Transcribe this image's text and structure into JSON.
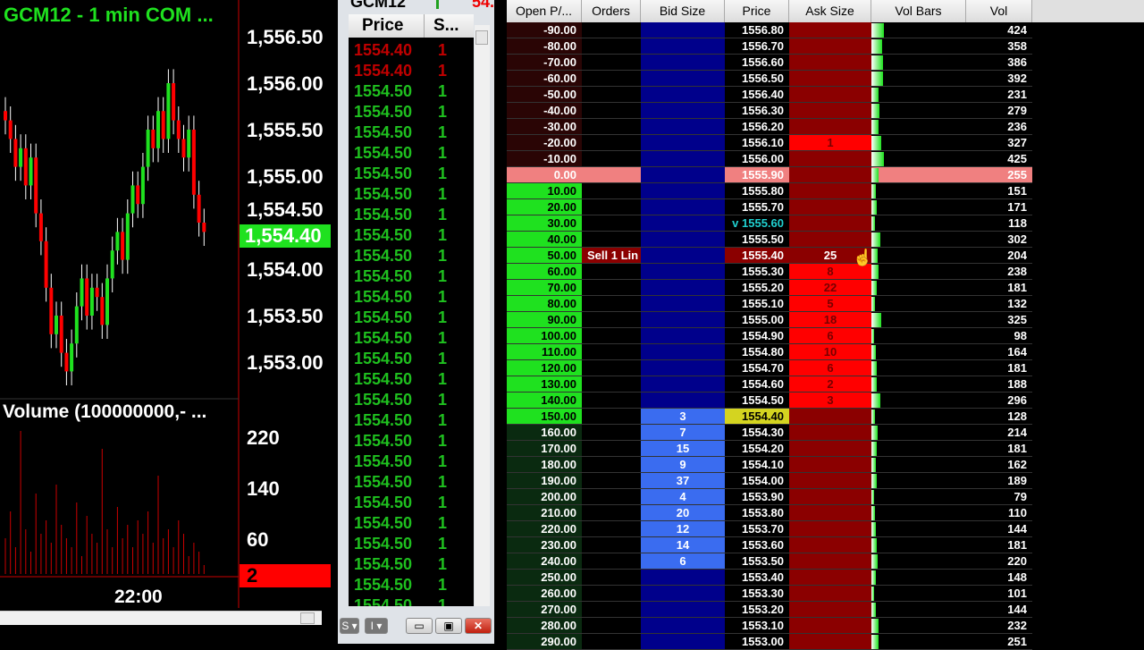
{
  "chart": {
    "title": "GCM12 - 1 min  COM ...",
    "price_labels": [
      "1,556.50",
      "1,556.00",
      "1,555.50",
      "1,555.00",
      "1,554.50",
      "1,554.00",
      "1,553.50",
      "1,553.00"
    ],
    "last_price": "1,554.40",
    "volume_title": "Volume (100000000,- ...",
    "volume_labels": [
      "220",
      "140",
      "60"
    ],
    "last_volume": "2",
    "time_label": "22:00",
    "closes": [
      1555.6,
      1555.4,
      1555.1,
      1555.3,
      1554.9,
      1555.2,
      1554.6,
      1554.3,
      1553.8,
      1553.3,
      1553.5,
      1553.1,
      1552.9,
      1553.2,
      1553.6,
      1553.9,
      1553.5,
      1553.8,
      1553.7,
      1553.4,
      1553.9,
      1554.2,
      1554.4,
      1554.1,
      1554.6,
      1554.9,
      1554.7,
      1555.1,
      1555.5,
      1555.3,
      1555.7,
      1555.4,
      1556.0,
      1555.6,
      1555.4,
      1555.2,
      1555.5,
      1554.8,
      1554.5,
      1554.4
    ]
  },
  "ts": {
    "symbol": "GCM12",
    "last": "54.",
    "headers": [
      "Price",
      "S..."
    ],
    "rows": [
      [
        "1554.40",
        "1",
        "sell"
      ],
      [
        "1554.40",
        "1",
        "sell"
      ],
      [
        "1554.50",
        "1",
        "buy"
      ],
      [
        "1554.50",
        "1",
        "buy"
      ],
      [
        "1554.50",
        "1",
        "buy"
      ],
      [
        "1554.50",
        "1",
        "buy"
      ],
      [
        "1554.50",
        "1",
        "buy"
      ],
      [
        "1554.50",
        "1",
        "buy"
      ],
      [
        "1554.50",
        "1",
        "buy"
      ],
      [
        "1554.50",
        "1",
        "buy"
      ],
      [
        "1554.50",
        "1",
        "buy"
      ],
      [
        "1554.50",
        "1",
        "buy"
      ],
      [
        "1554.50",
        "1",
        "buy"
      ],
      [
        "1554.50",
        "1",
        "buy"
      ],
      [
        "1554.50",
        "1",
        "buy"
      ],
      [
        "1554.50",
        "1",
        "buy"
      ],
      [
        "1554.50",
        "1",
        "buy"
      ],
      [
        "1554.50",
        "1",
        "buy"
      ],
      [
        "1554.50",
        "1",
        "buy"
      ],
      [
        "1554.50",
        "1",
        "buy"
      ],
      [
        "1554.50",
        "1",
        "buy"
      ],
      [
        "1554.50",
        "1",
        "buy"
      ],
      [
        "1554.50",
        "1",
        "buy"
      ],
      [
        "1554.50",
        "1",
        "buy"
      ],
      [
        "1554.50",
        "1",
        "buy"
      ],
      [
        "1554.50",
        "1",
        "buy"
      ],
      [
        "1554.50",
        "1",
        "buy"
      ],
      [
        "1554.50",
        "1",
        "buy"
      ]
    ],
    "toolbar": [
      "S",
      "I"
    ]
  },
  "ladder": {
    "headers": [
      "Open P/...",
      "Orders",
      "Bid Size",
      "Price",
      "Ask Size",
      "Vol Bars",
      "Vol"
    ],
    "rows": [
      [
        "-90.00",
        "",
        "",
        "1556.80",
        "",
        "424"
      ],
      [
        "-80.00",
        "",
        "",
        "1556.70",
        "",
        "358"
      ],
      [
        "-70.00",
        "",
        "",
        "1556.60",
        "",
        "386"
      ],
      [
        "-60.00",
        "",
        "",
        "1556.50",
        "",
        "392"
      ],
      [
        "-50.00",
        "",
        "",
        "1556.40",
        "",
        "231"
      ],
      [
        "-40.00",
        "",
        "",
        "1556.30",
        "",
        "279"
      ],
      [
        "-30.00",
        "",
        "",
        "1556.20",
        "",
        "236"
      ],
      [
        "-20.00",
        "",
        "",
        "1556.10",
        "1",
        "327"
      ],
      [
        "-10.00",
        "",
        "",
        "1556.00",
        "",
        "425"
      ],
      [
        "0.00",
        "",
        "",
        "1555.90",
        "",
        "255"
      ],
      [
        "10.00",
        "",
        "",
        "1555.80",
        "",
        "151"
      ],
      [
        "20.00",
        "",
        "",
        "1555.70",
        "",
        "171"
      ],
      [
        "30.00",
        "",
        "",
        "v 1555.60",
        "",
        "118"
      ],
      [
        "40.00",
        "",
        "",
        "1555.50",
        "",
        "302"
      ],
      [
        "50.00",
        "Sell 1 Lin",
        "",
        "1555.40",
        "25",
        "204"
      ],
      [
        "60.00",
        "",
        "",
        "1555.30",
        "8",
        "238"
      ],
      [
        "70.00",
        "",
        "",
        "1555.20",
        "22",
        "181"
      ],
      [
        "80.00",
        "",
        "",
        "1555.10",
        "5",
        "132"
      ],
      [
        "90.00",
        "",
        "",
        "1555.00",
        "18",
        "325"
      ],
      [
        "100.00",
        "",
        "",
        "1554.90",
        "6",
        "98"
      ],
      [
        "110.00",
        "",
        "",
        "1554.80",
        "10",
        "164"
      ],
      [
        "120.00",
        "",
        "",
        "1554.70",
        "6",
        "181"
      ],
      [
        "130.00",
        "",
        "",
        "1554.60",
        "2",
        "188"
      ],
      [
        "140.00",
        "",
        "",
        "1554.50",
        "3",
        "296"
      ],
      [
        "150.00",
        "",
        "3",
        "1554.40",
        "",
        "128"
      ],
      [
        "160.00",
        "",
        "7",
        "1554.30",
        "",
        "214"
      ],
      [
        "170.00",
        "",
        "15",
        "1554.20",
        "",
        "181"
      ],
      [
        "180.00",
        "",
        "9",
        "1554.10",
        "",
        "162"
      ],
      [
        "190.00",
        "",
        "37",
        "1554.00",
        "",
        "189"
      ],
      [
        "200.00",
        "",
        "4",
        "1553.90",
        "",
        "79"
      ],
      [
        "210.00",
        "",
        "20",
        "1553.80",
        "",
        "110"
      ],
      [
        "220.00",
        "",
        "12",
        "1553.70",
        "",
        "144"
      ],
      [
        "230.00",
        "",
        "14",
        "1553.60",
        "",
        "181"
      ],
      [
        "240.00",
        "",
        "6",
        "1553.50",
        "",
        "220"
      ],
      [
        "250.00",
        "",
        "",
        "1553.40",
        "",
        "148"
      ],
      [
        "260.00",
        "",
        "",
        "1553.30",
        "",
        "101"
      ],
      [
        "270.00",
        "",
        "",
        "1553.20",
        "",
        "144"
      ],
      [
        "280.00",
        "",
        "",
        "1553.10",
        "",
        "232"
      ],
      [
        "290.00",
        "",
        "",
        "1553.00",
        "",
        "251"
      ]
    ]
  }
}
